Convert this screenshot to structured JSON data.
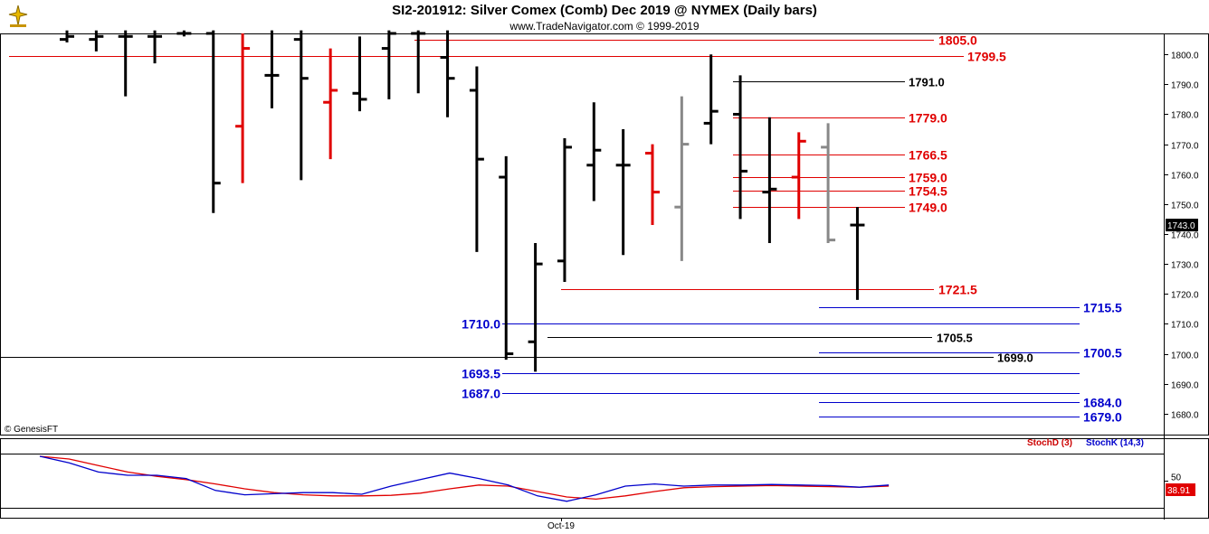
{
  "header": {
    "title": "SI2-201912:  Silver Comex (Comb) Dec 2019 @ NYMEX  (Daily bars)",
    "copyright": "www.TradeNavigator.com © 1999-2019"
  },
  "watermark": "© GenesisFT",
  "colors": {
    "black": "#000000",
    "red": "#e00000",
    "green": "#22cc22",
    "gray": "#888888",
    "blue": "#0000cc",
    "stochD": "#cc0000",
    "stochK": "#0000cc"
  },
  "chart_data": [
    {
      "type": "ohlc",
      "ylim": [
        1673,
        1807
      ],
      "yticks": [
        1680,
        1690,
        1700,
        1710,
        1720,
        1730,
        1740,
        1750,
        1760,
        1770,
        1780,
        1790,
        1800
      ],
      "ytick_labels": [
        "1680.0",
        "1690.0",
        "1700.0",
        "1710.0",
        "1720.0",
        "1730.0",
        "1740.0",
        "1750.0",
        "1760.0",
        "1770.0",
        "1780.0",
        "1790.0",
        "1800.0"
      ],
      "last_price_label": "1743.0",
      "bars": [
        {
          "o": 1805,
          "h": 1808,
          "l": 1804,
          "c": 1806,
          "color": "black"
        },
        {
          "o": 1805,
          "h": 1808,
          "l": 1801,
          "c": 1806,
          "color": "black"
        },
        {
          "o": 1806,
          "h": 1808,
          "l": 1786,
          "c": 1806,
          "color": "black"
        },
        {
          "o": 1806,
          "h": 1808,
          "l": 1797,
          "c": 1806,
          "color": "black"
        },
        {
          "o": 1807,
          "h": 1808,
          "l": 1806,
          "c": 1807,
          "color": "black"
        },
        {
          "o": 1807,
          "h": 1808,
          "l": 1747,
          "c": 1757,
          "color": "black"
        },
        {
          "o": 1776,
          "h": 1807,
          "l": 1757,
          "c": 1802,
          "color": "red"
        },
        {
          "o": 1793,
          "h": 1808,
          "l": 1782,
          "c": 1793,
          "color": "black"
        },
        {
          "o": 1805,
          "h": 1808,
          "l": 1758,
          "c": 1792,
          "color": "black"
        },
        {
          "o": 1784,
          "h": 1802,
          "l": 1765,
          "c": 1788,
          "color": "red"
        },
        {
          "o": 1787,
          "h": 1806,
          "l": 1781,
          "c": 1785,
          "color": "black"
        },
        {
          "o": 1802,
          "h": 1808,
          "l": 1785,
          "c": 1807,
          "color": "black"
        },
        {
          "o": 1807,
          "h": 1808,
          "l": 1787,
          "c": 1807,
          "color": "black"
        },
        {
          "o": 1799,
          "h": 1808,
          "l": 1779,
          "c": 1792,
          "color": "black"
        },
        {
          "o": 1788,
          "h": 1796,
          "l": 1734,
          "c": 1765,
          "color": "black"
        },
        {
          "o": 1759,
          "h": 1766,
          "l": 1698,
          "c": 1700,
          "color": "black"
        },
        {
          "o": 1704,
          "h": 1737,
          "l": 1694,
          "c": 1730,
          "color": "black"
        },
        {
          "o": 1731,
          "h": 1772,
          "l": 1724,
          "c": 1769,
          "color": "black"
        },
        {
          "o": 1763,
          "h": 1784,
          "l": 1751,
          "c": 1768,
          "color": "black"
        },
        {
          "o": 1763,
          "h": 1775,
          "l": 1733,
          "c": 1763,
          "color": "black"
        },
        {
          "o": 1767,
          "h": 1770,
          "l": 1743,
          "c": 1754,
          "color": "red"
        },
        {
          "o": 1749,
          "h": 1786,
          "l": 1731,
          "c": 1770,
          "color": "gray"
        },
        {
          "o": 1777,
          "h": 1800,
          "l": 1770,
          "c": 1781,
          "color": "black"
        },
        {
          "o": 1780,
          "h": 1793,
          "l": 1745,
          "c": 1761,
          "color": "black"
        },
        {
          "o": 1754,
          "h": 1779,
          "l": 1737,
          "c": 1755,
          "color": "black"
        },
        {
          "o": 1759,
          "h": 1774,
          "l": 1745,
          "c": 1771,
          "color": "red"
        },
        {
          "o": 1769,
          "h": 1777,
          "l": 1737,
          "c": 1738,
          "color": "gray"
        },
        {
          "o": 1743,
          "h": 1749,
          "l": 1718,
          "c": 1743,
          "color": "black"
        }
      ],
      "levels": [
        {
          "label": "1805.0",
          "value": 1805.0,
          "color": "red",
          "side": "right"
        },
        {
          "label": "1799.5",
          "value": 1799.5,
          "color": "red",
          "side": "right"
        },
        {
          "label": "1791.0",
          "value": 1791.0,
          "color": "black",
          "side": "right"
        },
        {
          "label": "1779.0",
          "value": 1779.0,
          "color": "red",
          "side": "right"
        },
        {
          "label": "1766.5",
          "value": 1766.5,
          "color": "red",
          "side": "right"
        },
        {
          "label": "1759.0",
          "value": 1759.0,
          "color": "red",
          "side": "right"
        },
        {
          "label": "1754.5",
          "value": 1754.5,
          "color": "red",
          "side": "right"
        },
        {
          "label": "1749.0",
          "value": 1749.0,
          "color": "red",
          "side": "right"
        },
        {
          "label": "1721.5",
          "value": 1721.5,
          "color": "red",
          "side": "right"
        },
        {
          "label": "1715.5",
          "value": 1715.5,
          "color": "blue",
          "side": "right"
        },
        {
          "label": "1710.0",
          "value": 1710.0,
          "color": "blue",
          "side": "left"
        },
        {
          "label": "1705.5",
          "value": 1705.5,
          "color": "black",
          "side": "right"
        },
        {
          "label": "1700.5",
          "value": 1700.5,
          "color": "blue",
          "side": "right"
        },
        {
          "label": "1699.0",
          "value": 1699.0,
          "color": "black",
          "side": "right"
        },
        {
          "label": "1693.5",
          "value": 1693.5,
          "color": "blue",
          "side": "left"
        },
        {
          "label": "1687.0",
          "value": 1687.0,
          "color": "blue",
          "side": "left"
        },
        {
          "label": "1684.0",
          "value": 1684.0,
          "color": "blue",
          "side": "right"
        },
        {
          "label": "1679.0",
          "value": 1679.0,
          "color": "blue",
          "side": "right"
        }
      ]
    },
    {
      "type": "line",
      "ylim": [
        0,
        100
      ],
      "yticks": [
        50
      ],
      "ytick_labels": [
        "50"
      ],
      "x_tick_label": "Oct-19",
      "last_value_label": "38.91",
      "series": [
        {
          "name": "StochD (3)",
          "color": "red",
          "values": [
            95,
            90,
            78,
            66,
            58,
            52,
            44,
            35,
            28,
            24,
            22,
            22,
            23,
            27,
            35,
            42,
            40,
            30,
            20,
            16,
            22,
            30,
            37,
            39,
            40,
            41,
            40,
            39,
            38,
            40
          ]
        },
        {
          "name": "StochK (14,3)",
          "color": "blue",
          "values": [
            95,
            83,
            66,
            60,
            60,
            54,
            32,
            24,
            26,
            28,
            28,
            25,
            40,
            52,
            64,
            54,
            42,
            22,
            12,
            24,
            40,
            44,
            40,
            42,
            42,
            43,
            42,
            41,
            38,
            42
          ]
        }
      ]
    }
  ]
}
